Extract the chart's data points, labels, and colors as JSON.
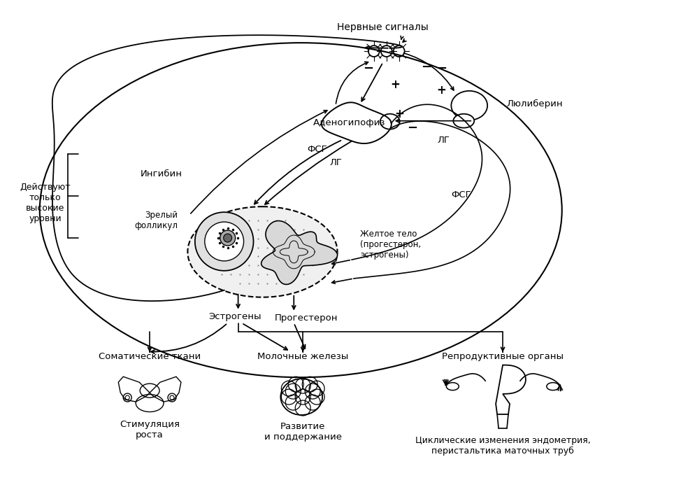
{
  "bg_color": "#ffffff",
  "text_color": "#000000",
  "line_color": "#000000",
  "labels": {
    "nerve_signals": "Нервные сигналы",
    "luliberin": "Люлиберин",
    "adenohypophysis": "Аденогипофиз",
    "fsg": "ФСГ",
    "lg": "ЛГ",
    "inhibin": "Ингибин",
    "mature_follicle": "Зрелый\nфолликул",
    "yellow_body": "Желтое тело\n(прогестерон,\nэстрогены)",
    "estrogens": "Эстрогены",
    "progesterone": "Прогестерон",
    "act_only_high": "Действуют\nтолько\nвысокие\nуровни",
    "somatic_tissues": "Соматические ткани",
    "mammary_glands": "Молочные железы",
    "reproductive_organs": "Репродуктивные органы",
    "stimulation_growth": "Стимуляция\nроста",
    "development_support": "Развитие\nи поддержание",
    "cyclic_changes": "Циклические изменения эндометрия,\nперистальтика маточных труб"
  },
  "figsize": [
    9.74,
    6.83
  ],
  "dpi": 100
}
